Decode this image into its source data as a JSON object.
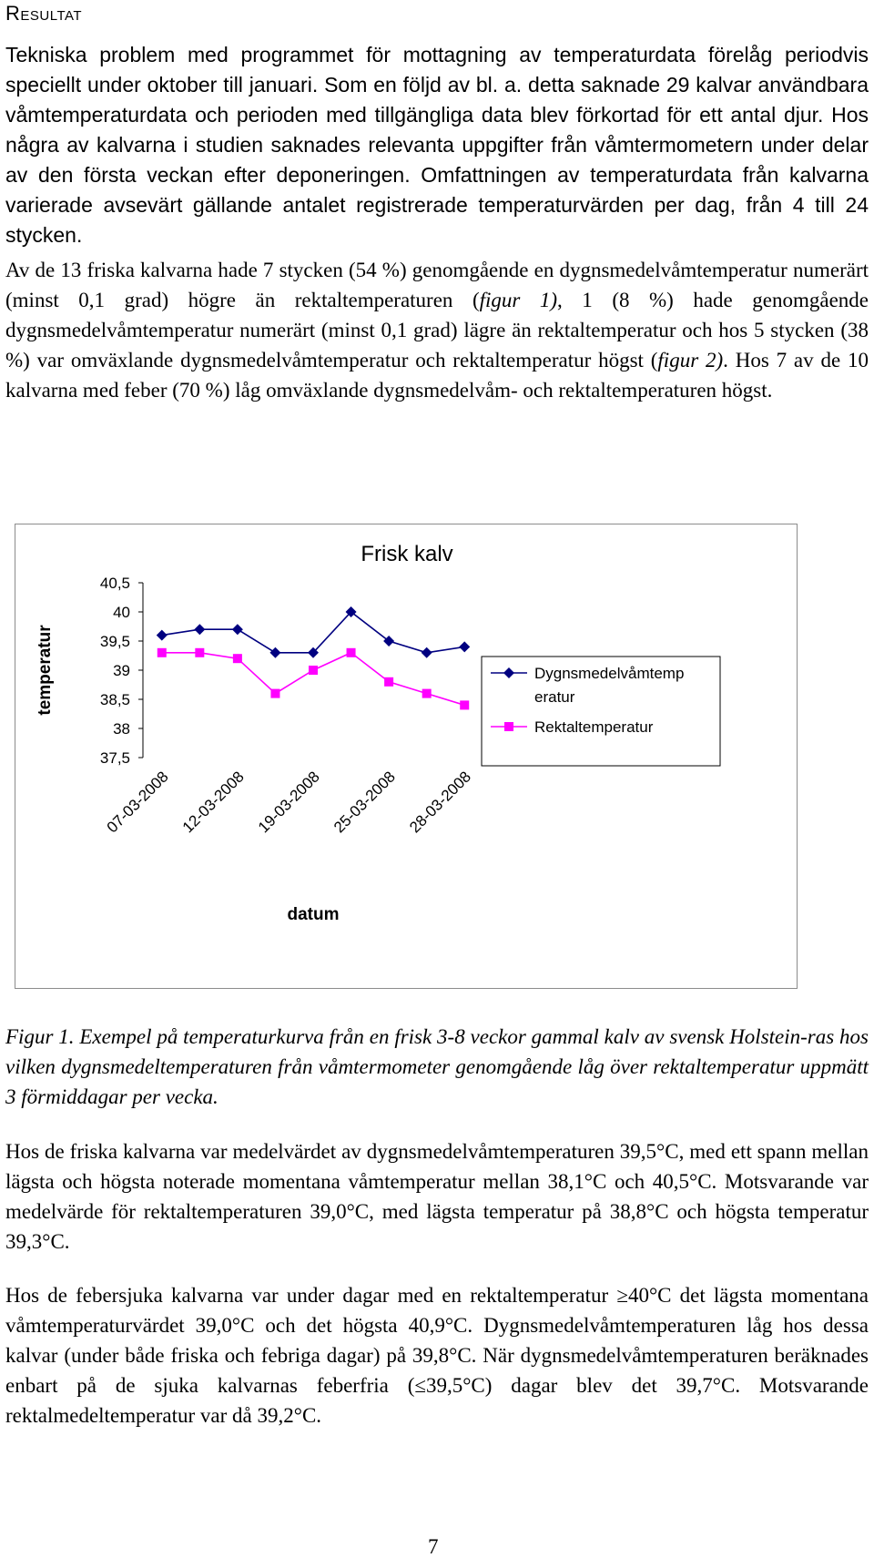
{
  "heading": "Resultat",
  "paragraphs": {
    "p1": "Tekniska problem med programmet för mottagning av temperaturdata förelåg periodvis speciellt under oktober till januari. Som en följd av bl. a. detta saknade 29 kalvar användbara våmtemperaturdata och perioden med tillgängliga data blev förkortad för ett antal djur. Hos några av kalvarna i studien saknades relevanta uppgifter från våmtermometern under delar av den första veckan efter deponeringen. Omfattningen av temperaturdata från kalvarna varierade avsevärt gällande antalet registrerade temperaturvärden per dag, från 4 till 24 stycken.",
    "p2": {
      "a": "Av de 13 friska kalvarna hade 7 stycken (54 %) genomgående en dygnsmedelvåmtemperatur numerärt (minst 0,1 grad) högre än rektaltemperaturen (",
      "ref1": "figur 1)",
      "b": ", 1 (8 %) hade genomgående dygnsmedelvåmtemperatur numerärt (minst 0,1 grad) lägre än rektaltemperatur och hos 5 stycken (38 %) var omväxlande dygnsmedelvåmtemperatur och rektaltemperatur högst (",
      "ref2": "figur 2)",
      "c": ". Hos 7 av de 10 kalvarna med feber (70 %) låg omväxlande dygnsmedelvåm- och rektaltemperaturen högst."
    },
    "p3": "Hos de friska kalvarna var medelvärdet av dygnsmedelvåmtemperaturen 39,5°C, med ett spann mellan lägsta och högsta noterade momentana våmtemperatur mellan 38,1°C och 40,5°C. Motsvarande var medelvärde för rektaltemperaturen 39,0°C, med lägsta temperatur på 38,8°C och högsta temperatur 39,3°C.",
    "p4": "Hos de febersjuka kalvarna var under dagar med en rektaltemperatur ≥40°C det lägsta momentana våmtemperaturvärdet 39,0°C och det högsta 40,9°C. Dygnsmedelvåmtemperaturen låg hos dessa kalvar (under både friska och febriga dagar) på 39,8°C. När dygnsmedelvåmtemperaturen beräknades enbart på de sjuka kalvarnas feberfria (≤39,5°C) dagar blev det 39,7°C. Motsvarande rektalmedeltemperatur var då 39,2°C."
  },
  "caption": "Figur 1. Exempel på temperaturkurva från en frisk 3-8 veckor gammal kalv av svensk Holstein-ras hos vilken dygnsmedeltemperaturen från våmtermometer genomgående låg över rektaltemperatur uppmätt 3 förmiddagar per vecka.",
  "page_number": "7",
  "chart_data": {
    "type": "line",
    "title": "Frisk kalv",
    "xlabel": "datum",
    "ylabel": "temperatur",
    "ylim": [
      37.5,
      40.5
    ],
    "yticks": [
      "40,5",
      "40",
      "39,5",
      "39",
      "38,5",
      "38",
      "37,5"
    ],
    "ytick_values": [
      40.5,
      40,
      39.5,
      39,
      38.5,
      38,
      37.5
    ],
    "x_tick_labels": [
      "07-03-2008",
      "12-03-2008",
      "19-03-2008",
      "25-03-2008",
      "28-03-2008"
    ],
    "point_count": 9,
    "legend_position": "right",
    "series": [
      {
        "name": "Dygnsmedelvåmtemperatur",
        "legend_lines": [
          "Dygnsmedelvåmtemp",
          "eratur"
        ],
        "color": "#000080",
        "marker": "diamond",
        "values": [
          39.6,
          39.7,
          39.7,
          39.3,
          39.3,
          40.0,
          39.5,
          39.3,
          39.4
        ]
      },
      {
        "name": "Rektaltemperatur",
        "legend_lines": [
          "Rektaltemperatur"
        ],
        "color": "#ff00ff",
        "marker": "square",
        "values": [
          39.3,
          39.3,
          39.2,
          38.6,
          39.0,
          39.3,
          38.8,
          38.6,
          38.4
        ]
      }
    ]
  }
}
